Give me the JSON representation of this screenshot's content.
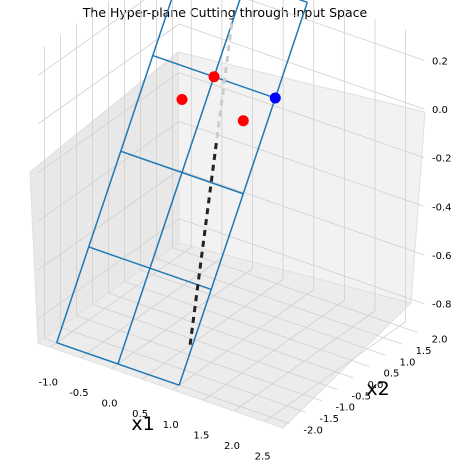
{
  "chart_data": {
    "type": "scatter3d",
    "title": "The Hyper-plane Cutting through Input Space",
    "axes": {
      "x": {
        "label": "x1",
        "range": [
          -1.2,
          2.8
        ],
        "ticks": [
          -1.0,
          -0.5,
          0.0,
          0.5,
          1.0,
          1.5,
          2.0,
          2.5
        ]
      },
      "y": {
        "label": "x2",
        "range": [
          -2.2,
          2.2
        ],
        "ticks": [
          -2.0,
          -1.5,
          -1.0,
          -0.5,
          0.0,
          0.5,
          1.0,
          1.5,
          2.0
        ]
      },
      "z": {
        "label": "",
        "range": [
          -0.9,
          0.3
        ],
        "ticks": [
          -0.8,
          -0.6,
          -0.4,
          -0.2,
          0.0,
          0.2
        ]
      }
    },
    "grid": true,
    "series": [
      {
        "kind": "points",
        "color": "#ff0000",
        "points": [
          [
            0.0,
            0.0,
            0.0
          ],
          [
            0.0,
            1.0,
            0.0
          ],
          [
            1.0,
            0.0,
            0.0
          ]
        ]
      },
      {
        "kind": "points",
        "color": "#0000ff",
        "points": [
          [
            1.0,
            1.0,
            0.0
          ]
        ]
      },
      {
        "kind": "wireframe",
        "color": "#1f77b4",
        "corners": [
          [
            -1.0,
            -2.0,
            -0.9
          ],
          [
            1.0,
            -2.0,
            -0.9
          ],
          [
            1.0,
            2.0,
            0.3
          ],
          [
            -1.0,
            2.0,
            0.3
          ]
        ],
        "rows": [
          -2.0,
          -1.0,
          0.0,
          1.0,
          2.0
        ],
        "cols": [
          -1.0,
          0.0,
          1.0
        ]
      },
      {
        "kind": "dashed-line",
        "colors": [
          "#cccccc",
          "#222222"
        ],
        "from": [
          0.5,
          0.6,
          0.3
        ],
        "to": [
          0.75,
          -1.2,
          -0.85
        ]
      }
    ]
  }
}
